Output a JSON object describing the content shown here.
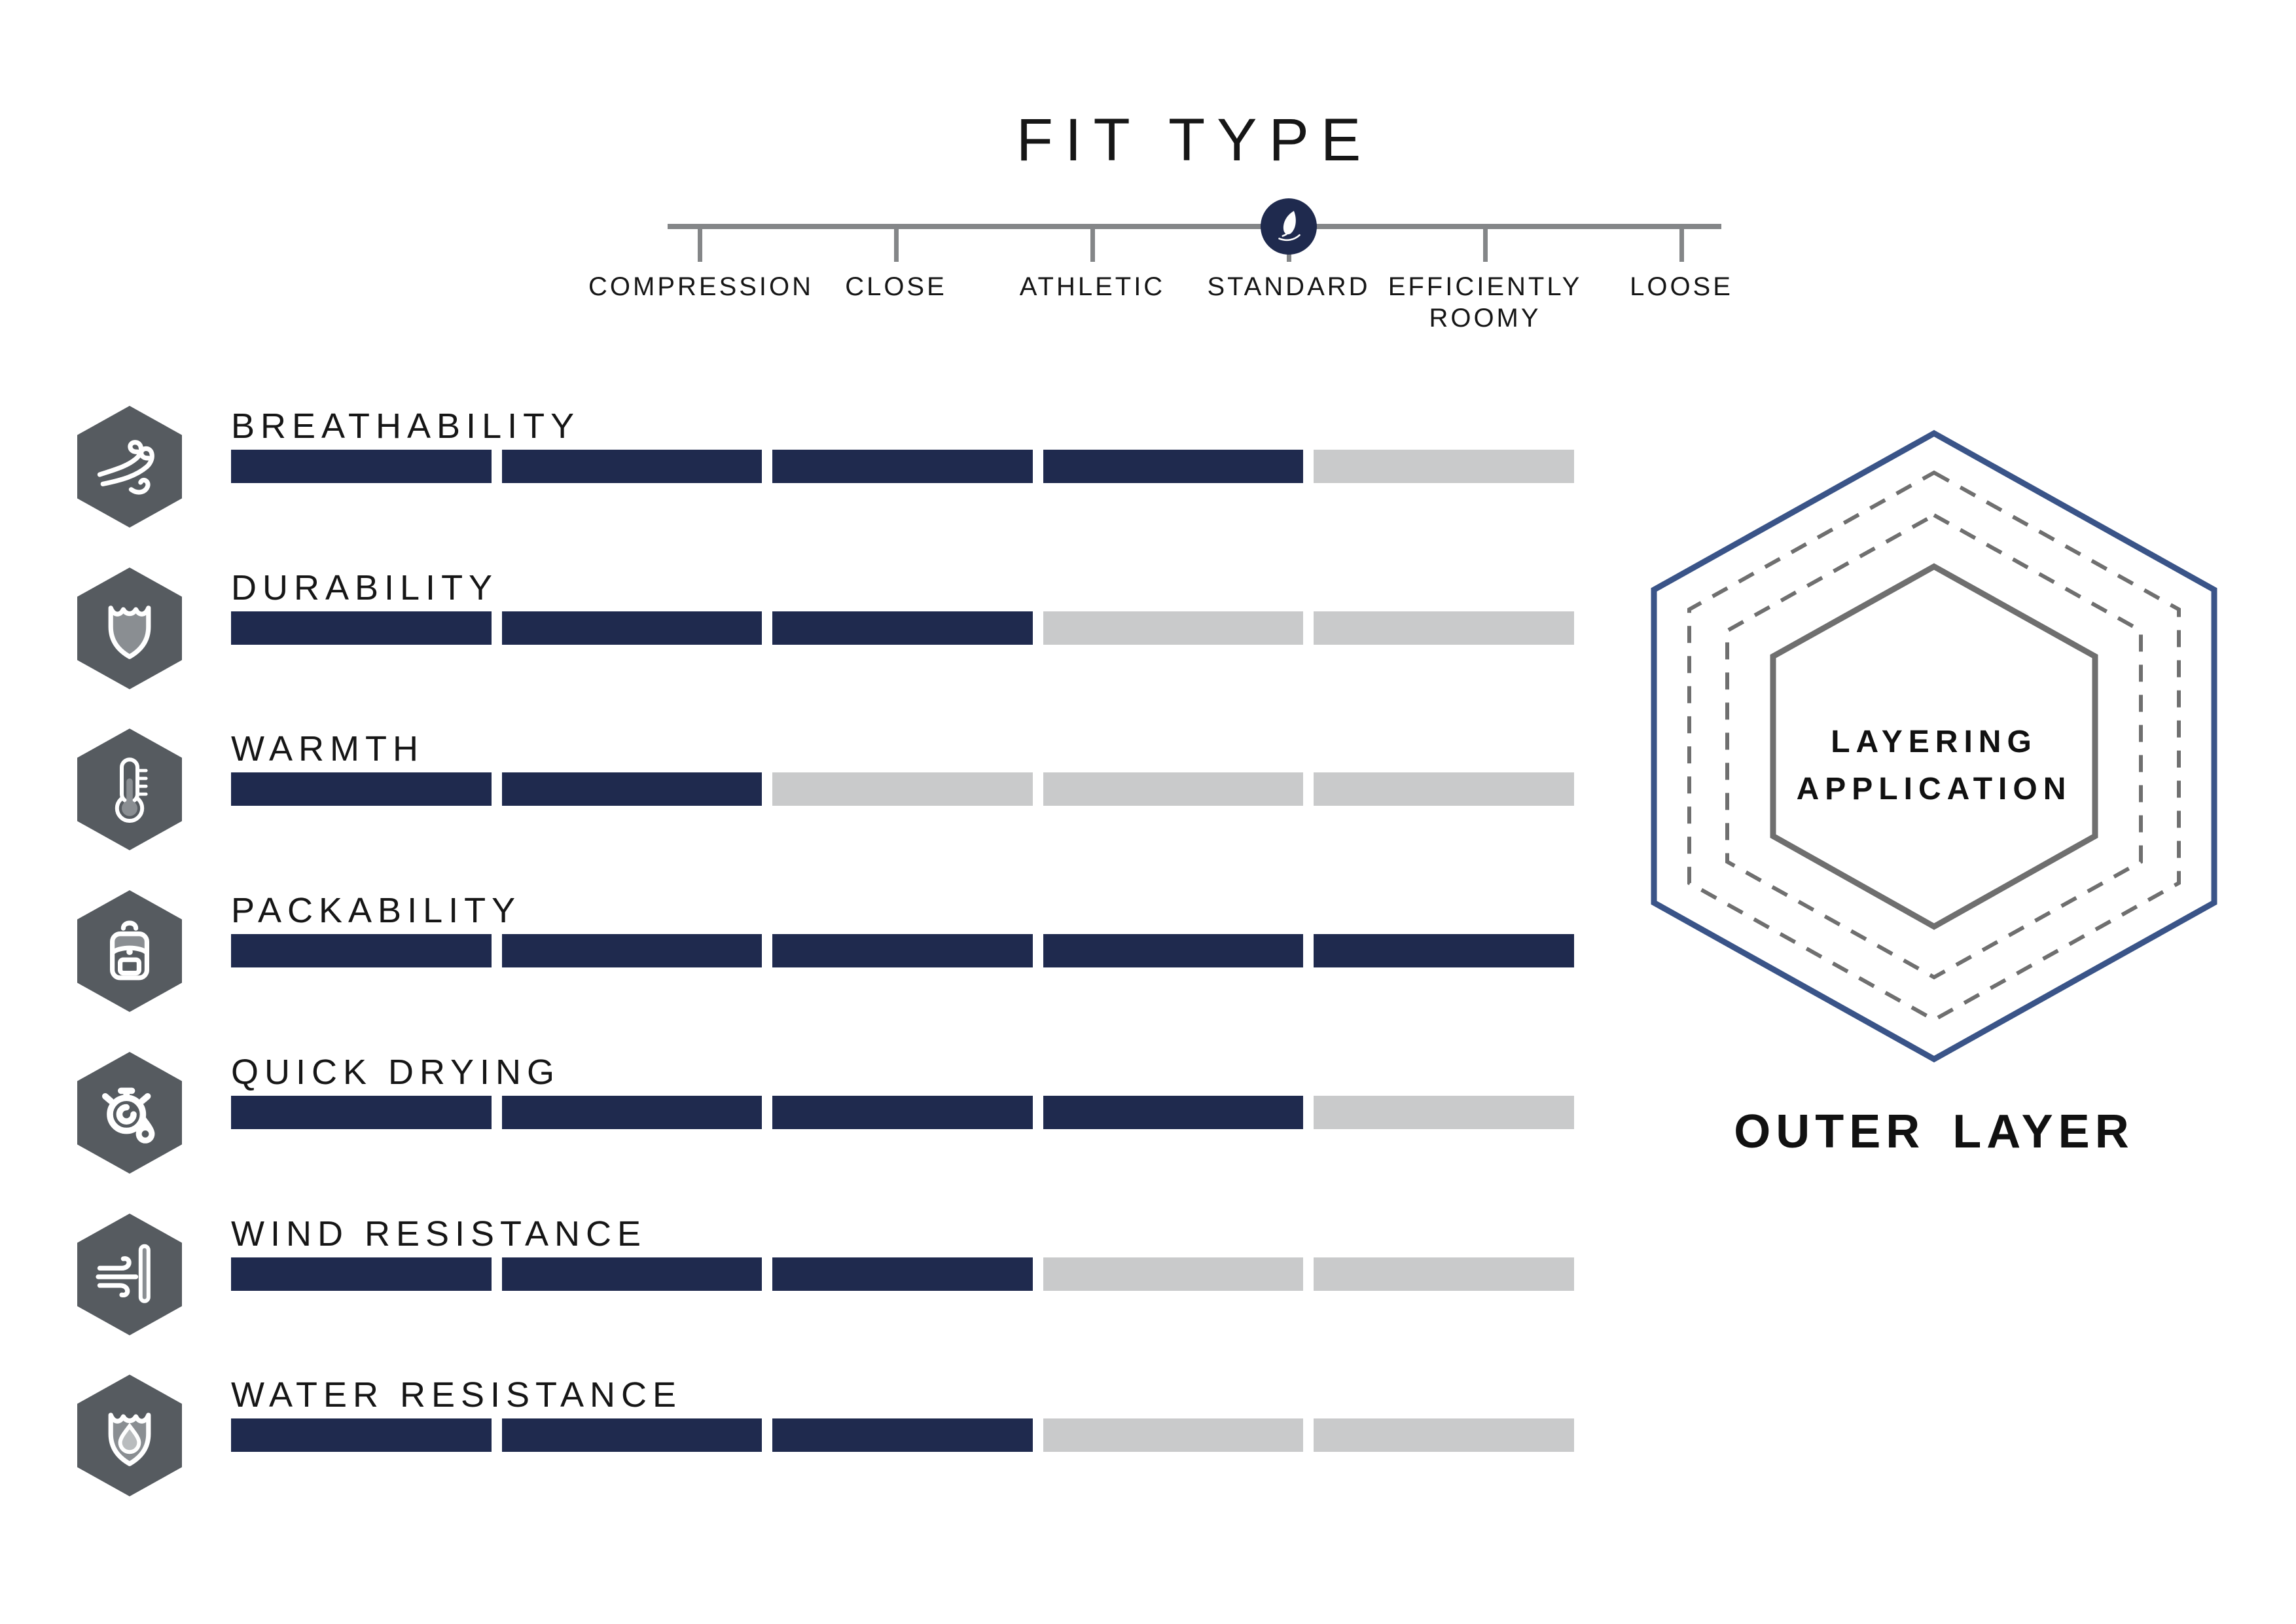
{
  "fit_type": {
    "title": "FIT TYPE",
    "options": [
      {
        "label": "COMPRESSION"
      },
      {
        "label": "CLOSE"
      },
      {
        "label": "ATHLETIC"
      },
      {
        "label": "STANDARD"
      },
      {
        "label": "EFFICIENTLY\nROOMY"
      },
      {
        "label": "LOOSE"
      }
    ],
    "selected": "STANDARD",
    "selected_index": 3,
    "marker_icon": "bird-logo"
  },
  "attributes": [
    {
      "label": "BREATHABILITY",
      "icon": "wind",
      "rating": 4,
      "max": 5
    },
    {
      "label": "DURABILITY",
      "icon": "shield",
      "rating": 3,
      "max": 5
    },
    {
      "label": "WARMTH",
      "icon": "thermometer",
      "rating": 2,
      "max": 5
    },
    {
      "label": "PACKABILITY",
      "icon": "backpack",
      "rating": 5,
      "max": 5
    },
    {
      "label": "QUICK DRYING",
      "icon": "stopwatch",
      "rating": 4,
      "max": 5
    },
    {
      "label": "WIND RESISTANCE",
      "icon": "wind-barrier",
      "rating": 3,
      "max": 5
    },
    {
      "label": "WATER RESISTANCE",
      "icon": "water-shield",
      "rating": 3,
      "max": 5
    }
  ],
  "layering": {
    "title_line1": "LAYERING",
    "title_line2": "APPLICATION",
    "caption": "OUTER LAYER",
    "highlighted_layer": "outer"
  },
  "colors": {
    "navy": "#1f2a4e",
    "bar_empty": "#c9cacb",
    "icon_hex_background": "#565b60",
    "scale_line_gray": "#848688",
    "hexagon_outline_blue": "#3a5488",
    "hexagon_outline_gray": "#6f6f6f",
    "text": "#161616"
  }
}
